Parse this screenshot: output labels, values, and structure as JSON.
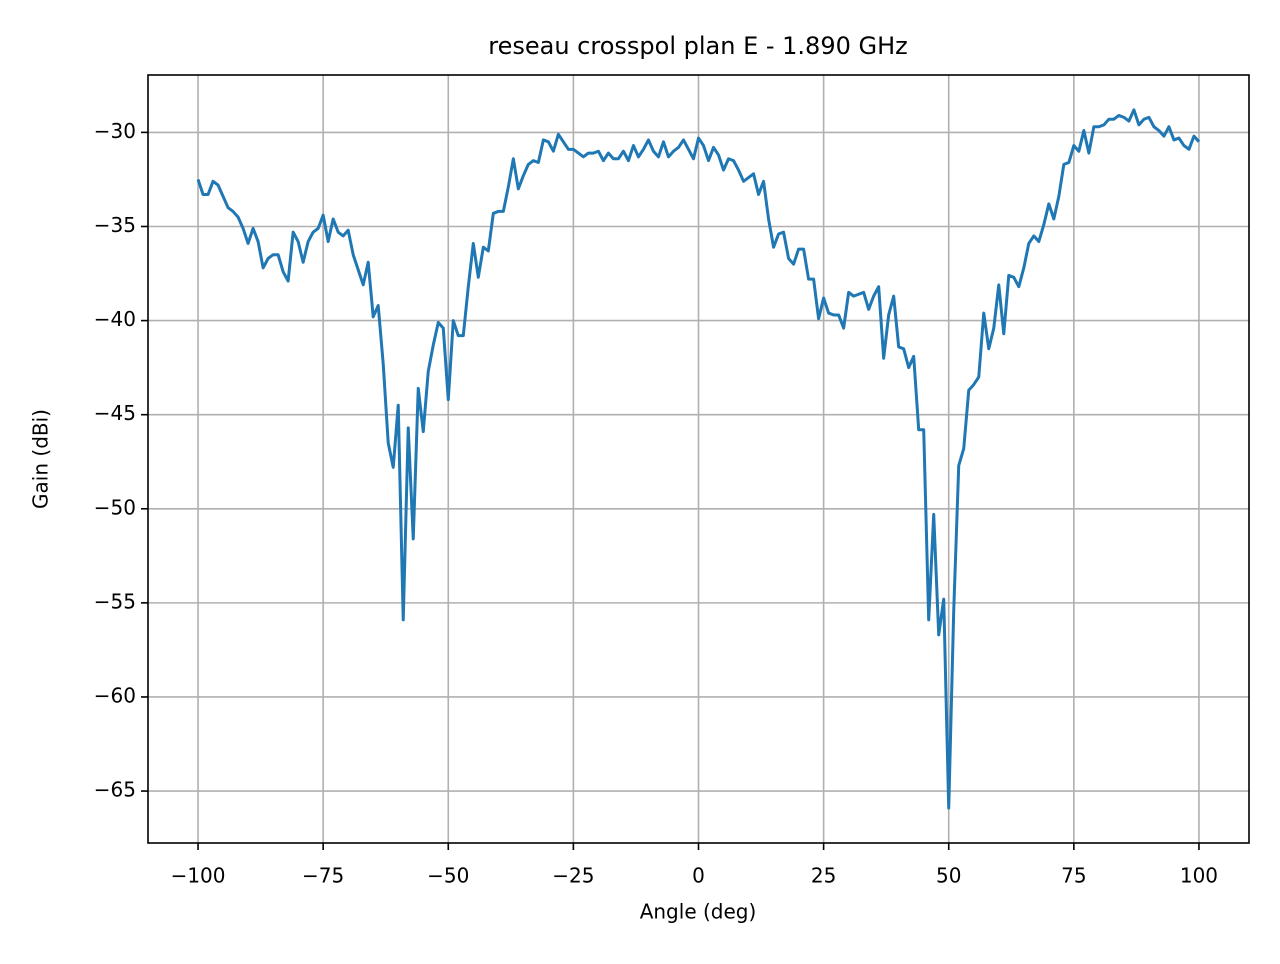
{
  "chart_data": {
    "type": "line",
    "title": "reseau crosspol plan E - 1.890 GHz",
    "x_label": "Angle (deg)",
    "y_label": "Gain (dBi)",
    "xlim": [
      -110,
      110
    ],
    "ylim": [
      -67.76,
      -26.95
    ],
    "xticks": [
      {
        "value": -100,
        "label": "−100"
      },
      {
        "value": -75,
        "label": "−75"
      },
      {
        "value": -50,
        "label": "−50"
      },
      {
        "value": -25,
        "label": "−25"
      },
      0,
      25,
      50,
      75,
      100
    ],
    "yticks": [
      {
        "value": -65,
        "label": "−65"
      },
      {
        "value": -60,
        "label": "−60"
      },
      {
        "value": -55,
        "label": "−55"
      },
      {
        "value": -50,
        "label": "−50"
      },
      {
        "value": -45,
        "label": "−45"
      },
      {
        "value": -40,
        "label": "−40"
      },
      {
        "value": -35,
        "label": "−35"
      },
      {
        "value": -30,
        "label": "−30"
      }
    ],
    "grid": true,
    "x": [
      -100,
      -99,
      -98,
      -97,
      -96,
      -95,
      -94,
      -93,
      -92,
      -91,
      -90,
      -89,
      -88,
      -87,
      -86,
      -85,
      -84,
      -83,
      -82,
      -81,
      -80,
      -79,
      -78,
      -77,
      -76,
      -75,
      -74,
      -73,
      -72,
      -71,
      -70,
      -69,
      -68,
      -67,
      -66,
      -65,
      -64,
      -63,
      -62,
      -61,
      -60,
      -59,
      -58,
      -57,
      -56,
      -55,
      -54,
      -53,
      -52,
      -51,
      -50,
      -49,
      -48,
      -47,
      -46,
      -45,
      -44,
      -43,
      -42,
      -41,
      -40,
      -39,
      -38,
      -37,
      -36,
      -35,
      -34,
      -33,
      -32,
      -31,
      -30,
      -29,
      -28,
      -27,
      -26,
      -25,
      -24,
      -23,
      -22,
      -21,
      -20,
      -19,
      -18,
      -17,
      -16,
      -15,
      -14,
      -13,
      -12,
      -11,
      -10,
      -9,
      -8,
      -7,
      -6,
      -5,
      -4,
      -3,
      -2,
      -1,
      0,
      1,
      2,
      3,
      4,
      5,
      6,
      7,
      8,
      9,
      10,
      11,
      12,
      13,
      14,
      15,
      16,
      17,
      18,
      19,
      20,
      21,
      22,
      23,
      24,
      25,
      26,
      27,
      28,
      29,
      30,
      31,
      32,
      33,
      34,
      35,
      36,
      37,
      38,
      39,
      40,
      41,
      42,
      43,
      44,
      45,
      46,
      47,
      48,
      49,
      50,
      51,
      52,
      53,
      54,
      55,
      56,
      57,
      58,
      59,
      60,
      61,
      62,
      63,
      64,
      65,
      66,
      67,
      68,
      69,
      70,
      71,
      72,
      73,
      74,
      75,
      76,
      77,
      78,
      79,
      80,
      81,
      82,
      83,
      84,
      85,
      86,
      87,
      88,
      89,
      90,
      91,
      92,
      93,
      94,
      95,
      96,
      97,
      98,
      99,
      100
    ],
    "series": [
      {
        "name": "gain",
        "color": "#1f77b4",
        "values": [
          -32.5,
          -33.3,
          -33.3,
          -32.6,
          -32.8,
          -33.4,
          -34.0,
          -34.2,
          -34.5,
          -35.1,
          -35.9,
          -35.1,
          -35.8,
          -37.2,
          -36.7,
          -36.5,
          -36.5,
          -37.4,
          -37.9,
          -35.3,
          -35.8,
          -36.9,
          -35.8,
          -35.3,
          -35.1,
          -34.4,
          -35.8,
          -34.6,
          -35.3,
          -35.5,
          -35.2,
          -36.5,
          -37.3,
          -38.1,
          -36.9,
          -39.8,
          -39.2,
          -42.3,
          -46.5,
          -47.8,
          -44.5,
          -55.9,
          -45.7,
          -51.6,
          -43.6,
          -45.9,
          -42.7,
          -41.3,
          -40.1,
          -40.4,
          -44.2,
          -40.0,
          -40.8,
          -40.8,
          -38.2,
          -35.9,
          -37.7,
          -36.1,
          -36.3,
          -34.3,
          -34.2,
          -34.2,
          -32.9,
          -31.4,
          -33.0,
          -32.3,
          -31.7,
          -31.5,
          -31.6,
          -30.4,
          -30.5,
          -31.0,
          -30.1,
          -30.5,
          -30.9,
          -30.9,
          -31.1,
          -31.3,
          -31.1,
          -31.1,
          -31.0,
          -31.5,
          -31.1,
          -31.4,
          -31.4,
          -31.0,
          -31.5,
          -30.7,
          -31.3,
          -30.9,
          -30.4,
          -31.0,
          -31.3,
          -30.5,
          -31.3,
          -31.0,
          -30.8,
          -30.4,
          -30.9,
          -31.4,
          -30.3,
          -30.7,
          -31.5,
          -30.8,
          -31.2,
          -32.0,
          -31.4,
          -31.5,
          -32.0,
          -32.6,
          -32.4,
          -32.2,
          -33.3,
          -32.6,
          -34.6,
          -36.1,
          -35.4,
          -35.3,
          -36.7,
          -37.0,
          -36.2,
          -36.2,
          -37.8,
          -37.8,
          -39.9,
          -38.8,
          -39.6,
          -39.7,
          -39.7,
          -40.4,
          -38.5,
          -38.7,
          -38.6,
          -38.5,
          -39.4,
          -38.7,
          -38.2,
          -42.0,
          -39.7,
          -38.7,
          -41.4,
          -41.5,
          -42.5,
          -41.9,
          -45.8,
          -45.8,
          -55.9,
          -50.3,
          -56.7,
          -54.8,
          -65.9,
          -55.4,
          -47.7,
          -46.8,
          -43.7,
          -43.4,
          -43.0,
          -39.6,
          -41.5,
          -40.4,
          -38.1,
          -40.7,
          -37.6,
          -37.7,
          -38.2,
          -37.2,
          -35.9,
          -35.5,
          -35.8,
          -34.9,
          -33.8,
          -34.6,
          -33.4,
          -31.7,
          -31.6,
          -30.7,
          -31.0,
          -29.9,
          -31.1,
          -29.7,
          -29.7,
          -29.6,
          -29.3,
          -29.3,
          -29.1,
          -29.2,
          -29.4,
          -28.8,
          -29.6,
          -29.3,
          -29.2,
          -29.7,
          -29.9,
          -30.2,
          -29.7,
          -30.4,
          -30.3,
          -30.7,
          -30.9,
          -30.2,
          -30.5
        ]
      }
    ]
  }
}
